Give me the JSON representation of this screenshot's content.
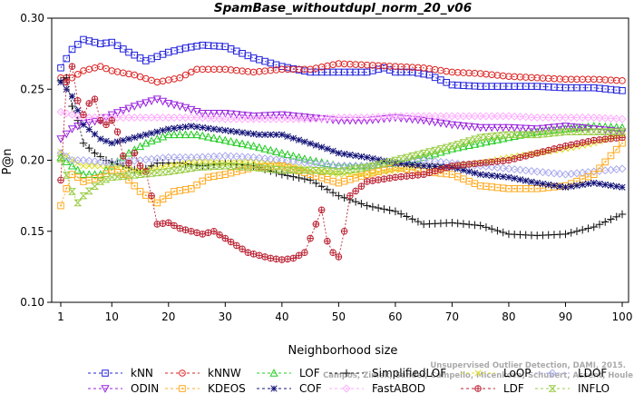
{
  "chart_data": {
    "type": "line",
    "title": "SpamBase_withoutdupl_norm_20_v06",
    "xlabel": "Neighborhood size",
    "ylabel": "P@n",
    "xlim": [
      1,
      100
    ],
    "ylim": [
      0.1,
      0.3
    ],
    "xticks": [
      "1",
      "10",
      "20",
      "30",
      "40",
      "50",
      "60",
      "70",
      "80",
      "90",
      "100"
    ],
    "yticks": [
      "0.10",
      "0.15",
      "0.20",
      "0.25",
      "0.30"
    ],
    "grid": false,
    "legend_position": "bottom",
    "credit": [
      "Campos, Zimek, Sander, Campello, Micenkova, Schubert, Assent, Houle",
      "Unsupervised Outlier Detection, DAMI, 2015."
    ],
    "series": [
      {
        "name": "kNN",
        "color": "#2222dd",
        "marker": "square",
        "x": [
          1,
          3,
          5,
          8,
          10,
          13,
          16,
          20,
          23,
          26,
          30,
          35,
          40,
          45,
          50,
          55,
          58,
          60,
          63,
          66,
          70,
          75,
          80,
          85,
          90,
          95,
          100
        ],
        "y": [
          0.265,
          0.278,
          0.285,
          0.282,
          0.283,
          0.276,
          0.27,
          0.276,
          0.279,
          0.281,
          0.28,
          0.272,
          0.266,
          0.262,
          0.262,
          0.262,
          0.265,
          0.262,
          0.262,
          0.26,
          0.253,
          0.252,
          0.252,
          0.252,
          0.251,
          0.251,
          0.249
        ]
      },
      {
        "name": "kNNW",
        "color": "#dd2222",
        "marker": "circle",
        "x": [
          1,
          3,
          5,
          8,
          10,
          14,
          18,
          22,
          25,
          30,
          35,
          40,
          45,
          50,
          55,
          60,
          65,
          70,
          75,
          80,
          85,
          90,
          95,
          100
        ],
        "y": [
          0.258,
          0.258,
          0.263,
          0.266,
          0.263,
          0.26,
          0.255,
          0.258,
          0.264,
          0.264,
          0.262,
          0.264,
          0.264,
          0.268,
          0.267,
          0.266,
          0.265,
          0.262,
          0.261,
          0.259,
          0.258,
          0.257,
          0.257,
          0.256
        ]
      },
      {
        "name": "LOF",
        "color": "#22cc22",
        "marker": "triangle-up",
        "x": [
          1,
          3,
          5,
          8,
          10,
          13,
          16,
          20,
          25,
          30,
          35,
          40,
          45,
          50,
          55,
          60,
          65,
          70,
          75,
          80,
          85,
          90,
          95,
          100
        ],
        "y": [
          0.202,
          0.196,
          0.19,
          0.19,
          0.196,
          0.205,
          0.212,
          0.218,
          0.218,
          0.214,
          0.21,
          0.205,
          0.2,
          0.196,
          0.196,
          0.198,
          0.202,
          0.208,
          0.212,
          0.216,
          0.22,
          0.222,
          0.224,
          0.223
        ]
      },
      {
        "name": "SimplifiedLOF",
        "color": "#111111",
        "marker": "plus",
        "x": [
          1,
          2,
          3,
          4,
          5,
          7,
          9,
          12,
          15,
          18,
          22,
          26,
          30,
          35,
          40,
          45,
          50,
          55,
          60,
          65,
          70,
          75,
          80,
          85,
          90,
          95,
          100
        ],
        "y": [
          0.256,
          0.258,
          0.238,
          0.228,
          0.212,
          0.205,
          0.2,
          0.196,
          0.192,
          0.198,
          0.198,
          0.196,
          0.198,
          0.196,
          0.19,
          0.186,
          0.175,
          0.168,
          0.164,
          0.155,
          0.156,
          0.154,
          0.148,
          0.147,
          0.148,
          0.153,
          0.162
        ]
      },
      {
        "name": "LoOP",
        "color": "#dddd22",
        "marker": "x",
        "x": [
          1,
          3,
          5,
          8,
          10,
          15,
          20,
          25,
          30,
          35,
          40,
          45,
          50,
          55,
          60,
          65,
          70,
          75,
          80,
          85,
          90,
          95,
          100
        ],
        "y": [
          0.206,
          0.2,
          0.196,
          0.196,
          0.196,
          0.192,
          0.196,
          0.199,
          0.198,
          0.199,
          0.197,
          0.193,
          0.19,
          0.19,
          0.193,
          0.196,
          0.196,
          0.198,
          0.202,
          0.205,
          0.208,
          0.212,
          0.218
        ]
      },
      {
        "name": "LDOF",
        "color": "#aaaaee",
        "marker": "diamond",
        "x": [
          1,
          3,
          5,
          10,
          15,
          20,
          25,
          30,
          35,
          40,
          45,
          50,
          55,
          60,
          65,
          70,
          75,
          80,
          85,
          90,
          95,
          100
        ],
        "y": [
          0.205,
          0.2,
          0.2,
          0.198,
          0.2,
          0.202,
          0.202,
          0.203,
          0.202,
          0.2,
          0.198,
          0.196,
          0.196,
          0.198,
          0.2,
          0.198,
          0.196,
          0.194,
          0.192,
          0.19,
          0.192,
          0.194
        ]
      },
      {
        "name": "ODIN",
        "color": "#9922dd",
        "marker": "triangle-down",
        "x": [
          1,
          3,
          5,
          8,
          10,
          14,
          18,
          20,
          23,
          26,
          30,
          35,
          40,
          45,
          50,
          55,
          60,
          65,
          70,
          75,
          80,
          85,
          90,
          95,
          100
        ],
        "y": [
          0.215,
          0.222,
          0.226,
          0.228,
          0.232,
          0.238,
          0.243,
          0.24,
          0.237,
          0.233,
          0.233,
          0.231,
          0.232,
          0.23,
          0.228,
          0.228,
          0.23,
          0.228,
          0.225,
          0.223,
          0.223,
          0.222,
          0.224,
          0.222,
          0.22
        ]
      },
      {
        "name": "KDEOS",
        "color": "#ffaa22",
        "marker": "square-dot",
        "x": [
          1,
          2,
          3,
          4,
          5,
          8,
          10,
          12,
          15,
          18,
          21,
          24,
          27,
          30,
          35,
          40,
          45,
          50,
          55,
          60,
          65,
          70,
          75,
          80,
          85,
          90,
          95,
          100
        ],
        "y": [
          0.168,
          0.18,
          0.19,
          0.188,
          0.185,
          0.188,
          0.193,
          0.19,
          0.178,
          0.17,
          0.178,
          0.18,
          0.188,
          0.19,
          0.195,
          0.196,
          0.19,
          0.184,
          0.19,
          0.195,
          0.192,
          0.19,
          0.182,
          0.18,
          0.18,
          0.182,
          0.19,
          0.212
        ]
      },
      {
        "name": "COF",
        "color": "#111177",
        "marker": "asterisk",
        "x": [
          1,
          3,
          5,
          8,
          10,
          13,
          16,
          20,
          24,
          28,
          32,
          36,
          40,
          44,
          48,
          50,
          55,
          60,
          65,
          70,
          75,
          80,
          85,
          90,
          95,
          100
        ],
        "y": [
          0.255,
          0.245,
          0.225,
          0.215,
          0.212,
          0.215,
          0.218,
          0.222,
          0.224,
          0.222,
          0.22,
          0.218,
          0.218,
          0.213,
          0.208,
          0.205,
          0.202,
          0.198,
          0.196,
          0.195,
          0.19,
          0.188,
          0.184,
          0.181,
          0.184,
          0.181
        ]
      },
      {
        "name": "FastABOD",
        "color": "#ffaaff",
        "marker": "diamond-dot",
        "x": [
          1,
          3,
          5,
          8,
          10,
          15,
          20,
          25,
          30,
          35,
          40,
          45,
          50,
          55,
          60,
          65,
          70,
          75,
          80,
          85,
          90,
          95,
          100
        ],
        "y": [
          0.234,
          0.232,
          0.23,
          0.23,
          0.23,
          0.23,
          0.23,
          0.23,
          0.229,
          0.229,
          0.229,
          0.229,
          0.23,
          0.23,
          0.231,
          0.231,
          0.231,
          0.231,
          0.231,
          0.23,
          0.23,
          0.23,
          0.229
        ]
      },
      {
        "name": "LDF",
        "color": "#bb2233",
        "marker": "circle-plus",
        "x": [
          1,
          2,
          3,
          4,
          5,
          6,
          7,
          8,
          9,
          10,
          11,
          12,
          13,
          14,
          15,
          16,
          17,
          18,
          20,
          22,
          24,
          26,
          28,
          30,
          32,
          34,
          36,
          38,
          40,
          42,
          44,
          46,
          47,
          48,
          49,
          50,
          51,
          52,
          55,
          60,
          65,
          70,
          75,
          80,
          85,
          90,
          95,
          100
        ],
        "y": [
          0.186,
          0.255,
          0.266,
          0.242,
          0.232,
          0.24,
          0.243,
          0.228,
          0.225,
          0.228,
          0.22,
          0.203,
          0.198,
          0.205,
          0.196,
          0.192,
          0.175,
          0.155,
          0.156,
          0.152,
          0.15,
          0.148,
          0.15,
          0.145,
          0.14,
          0.135,
          0.133,
          0.131,
          0.13,
          0.131,
          0.135,
          0.155,
          0.165,
          0.143,
          0.135,
          0.132,
          0.15,
          0.175,
          0.185,
          0.188,
          0.19,
          0.196,
          0.198,
          0.2,
          0.205,
          0.21,
          0.214,
          0.216
        ]
      },
      {
        "name": "INFLO",
        "color": "#99cc44",
        "marker": "hourglass",
        "x": [
          1,
          3,
          4,
          5,
          8,
          10,
          15,
          20,
          25,
          30,
          35,
          40,
          45,
          50,
          55,
          60,
          65,
          70,
          75,
          80,
          85,
          90,
          95,
          100
        ],
        "y": [
          0.201,
          0.178,
          0.17,
          0.175,
          0.185,
          0.188,
          0.19,
          0.192,
          0.195,
          0.196,
          0.195,
          0.193,
          0.193,
          0.192,
          0.195,
          0.2,
          0.205,
          0.21,
          0.216,
          0.218,
          0.218,
          0.22,
          0.22,
          0.22
        ]
      }
    ]
  }
}
